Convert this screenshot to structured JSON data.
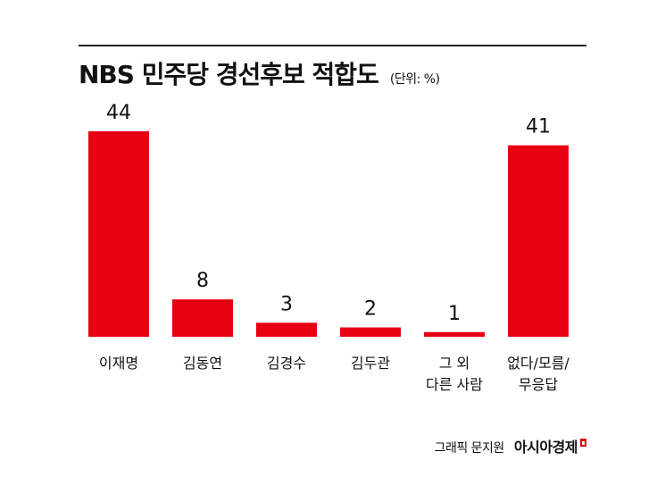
{
  "title": "NBS 민주당 경선후보 적합도",
  "unit": "(단위: %)",
  "credit": "그래픽 문지원",
  "brand": "아시아경제",
  "colors": {
    "bar": "#e60012",
    "rule": "#222222",
    "text": "#111111"
  },
  "chart_data": {
    "type": "bar",
    "categories": [
      "이재명",
      "김동연",
      "김경수",
      "김두관",
      "그 외\n다른 사람",
      "없다/모름/\n무응답"
    ],
    "values": [
      44,
      8,
      3,
      2,
      1,
      41
    ],
    "ylim": [
      0,
      44
    ],
    "grid": false,
    "legend": "none"
  }
}
